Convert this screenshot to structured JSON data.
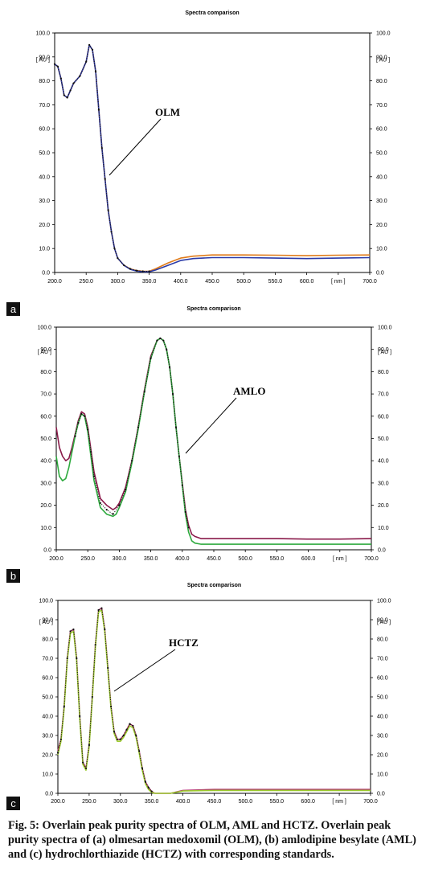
{
  "chart_data": [
    {
      "type": "line",
      "panel_label": "a",
      "title": "Spectra comparison",
      "annotation": "OLM",
      "xlim": [
        200,
        700
      ],
      "ylim": [
        0,
        100
      ],
      "x_ticks": [
        "200.0",
        "250.0",
        "300.0",
        "350.0",
        "400.0",
        "450.0",
        "500.0",
        "550.0",
        "600.0",
        "650.0",
        "700.0"
      ],
      "x_unit": "[ nm ]",
      "y_ticks": [
        "0.0",
        "10.0",
        "20.0",
        "30.0",
        "40.0",
        "50.0",
        "60.0",
        "70.0",
        "80.0",
        "90.0",
        "100.0"
      ],
      "y_unit": "[ AU ]",
      "series": [
        {
          "color": "#e07b1a",
          "x": [
            200,
            205,
            210,
            215,
            220,
            225,
            230,
            240,
            250,
            255,
            260,
            265,
            270,
            275,
            280,
            285,
            290,
            295,
            300,
            310,
            320,
            330,
            340,
            350,
            360,
            380,
            400,
            420,
            450,
            500,
            550,
            600,
            650,
            700
          ],
          "y": [
            87,
            86,
            81,
            74,
            73,
            76,
            79,
            82,
            88,
            95,
            93,
            84,
            68,
            52,
            39,
            26,
            17,
            10,
            6,
            3,
            1.5,
            0.8,
            0.5,
            0.5,
            1.5,
            4,
            6,
            6.8,
            7.3,
            7.3,
            7.2,
            7,
            7.2,
            7.3
          ]
        },
        {
          "color": "#2b3ba8",
          "x": [
            200,
            205,
            210,
            215,
            220,
            225,
            230,
            240,
            250,
            255,
            260,
            265,
            270,
            275,
            280,
            285,
            290,
            295,
            300,
            310,
            320,
            330,
            340,
            350,
            360,
            380,
            400,
            420,
            450,
            500,
            550,
            600,
            650,
            700
          ],
          "y": [
            87,
            86,
            81,
            74,
            73,
            76,
            79,
            82,
            88,
            95,
            93,
            84,
            68,
            52,
            39,
            26,
            17,
            10,
            6,
            3,
            1.3,
            0.6,
            0.3,
            0.3,
            1,
            3,
            5,
            5.8,
            6.2,
            6.2,
            6,
            5.8,
            6,
            6.2
          ]
        },
        {
          "color": "#111111",
          "dots": true,
          "x": [
            200,
            205,
            210,
            215,
            220,
            225,
            230,
            240,
            250,
            255,
            260,
            265,
            270,
            275,
            280,
            285,
            290,
            295,
            300,
            310,
            320,
            330,
            340,
            350
          ],
          "y": [
            87,
            86,
            81,
            74,
            73,
            76,
            79,
            82,
            88,
            95,
            93,
            84,
            68,
            52,
            39,
            26,
            17,
            10,
            6,
            3,
            1.5,
            0.8,
            0.5,
            0.5
          ]
        }
      ]
    },
    {
      "type": "line",
      "panel_label": "b",
      "title": "Spectra comparison",
      "annotation": "AMLO",
      "xlim": [
        200,
        700
      ],
      "ylim": [
        0,
        100
      ],
      "x_ticks": [
        "200.0",
        "250.0",
        "300.0",
        "350.0",
        "400.0",
        "450.0",
        "500.0",
        "550.0",
        "600.0",
        "650.0",
        "700.0"
      ],
      "x_unit": "[ nm ]",
      "y_ticks": [
        "0.0",
        "10.0",
        "20.0",
        "30.0",
        "40.0",
        "50.0",
        "60.0",
        "70.0",
        "80.0",
        "90.0",
        "100.0"
      ],
      "y_unit": "[ AU ]",
      "series": [
        {
          "color": "#8a1a4a",
          "x": [
            200,
            205,
            210,
            215,
            220,
            225,
            230,
            235,
            240,
            245,
            250,
            255,
            260,
            270,
            280,
            290,
            295,
            300,
            310,
            320,
            330,
            340,
            350,
            360,
            365,
            370,
            375,
            380,
            385,
            390,
            395,
            400,
            405,
            410,
            415,
            420,
            430,
            450,
            500,
            550,
            600,
            650,
            700
          ],
          "y": [
            55,
            46,
            42,
            40,
            41,
            46,
            52,
            58,
            62,
            61,
            55,
            45,
            35,
            23,
            20,
            18,
            19,
            21,
            28,
            40,
            55,
            72,
            87,
            94,
            95,
            94,
            90,
            82,
            70,
            55,
            42,
            30,
            18,
            11,
            7,
            6,
            5,
            5,
            5,
            5,
            4.8,
            4.8,
            5
          ]
        },
        {
          "color": "#2eaa3e",
          "x": [
            200,
            205,
            210,
            215,
            220,
            225,
            230,
            235,
            240,
            245,
            250,
            255,
            260,
            270,
            280,
            290,
            295,
            300,
            310,
            320,
            330,
            340,
            350,
            360,
            365,
            370,
            375,
            380,
            385,
            390,
            395,
            400,
            405,
            410,
            415,
            420,
            430,
            450,
            500,
            550,
            600,
            650,
            700
          ],
          "y": [
            42,
            33,
            31,
            32,
            37,
            44,
            51,
            57,
            61,
            60,
            53,
            42,
            31,
            19,
            16,
            15,
            16,
            19,
            26,
            39,
            54,
            71,
            86,
            94,
            95,
            94,
            90,
            82,
            70,
            55,
            42,
            29,
            16,
            8,
            4,
            3,
            2.5,
            2.5,
            2.5,
            2.5,
            2.5,
            2.5,
            2.5
          ]
        },
        {
          "color": "#111111",
          "dots": true,
          "x": [
            230,
            235,
            240,
            245,
            250,
            255,
            260,
            270,
            280,
            290,
            300,
            310,
            320,
            330,
            340,
            350,
            360,
            365,
            370,
            375,
            380,
            385,
            390,
            395,
            400,
            405,
            410
          ],
          "y": [
            51,
            57,
            61,
            60,
            54,
            44,
            33,
            21,
            18,
            16,
            20,
            27,
            40,
            55,
            71,
            86,
            94,
            95,
            94,
            90,
            82,
            70,
            55,
            42,
            29,
            17,
            10
          ]
        }
      ]
    },
    {
      "type": "line",
      "panel_label": "c",
      "title": "Spectra comparison",
      "annotation": "HCTZ",
      "xlim": [
        200,
        700
      ],
      "ylim": [
        0,
        100
      ],
      "x_ticks": [
        "200.0",
        "250.0",
        "300.0",
        "350.0",
        "400.0",
        "450.0",
        "500.0",
        "550.0",
        "600.0",
        "650.0",
        "700.0"
      ],
      "x_unit": "[ nm ]",
      "y_ticks": [
        "0.0",
        "10.0",
        "20.0",
        "30.0",
        "40.0",
        "50.0",
        "60.0",
        "70.0",
        "80.0",
        "90.0",
        "100.0"
      ],
      "y_unit": "[ AU ]",
      "series": [
        {
          "color": "#b0336a",
          "x": [
            200,
            205,
            210,
            215,
            220,
            225,
            230,
            235,
            240,
            245,
            250,
            255,
            260,
            265,
            270,
            275,
            280,
            285,
            290,
            295,
            300,
            305,
            310,
            315,
            320,
            325,
            330,
            335,
            340,
            345,
            350,
            355,
            360,
            370,
            380,
            400,
            450,
            500,
            550,
            600,
            650,
            700
          ],
          "y": [
            22,
            28,
            45,
            70,
            84,
            85,
            70,
            40,
            16,
            13,
            25,
            50,
            77,
            95,
            96,
            85,
            65,
            45,
            32,
            28,
            28,
            30,
            33,
            36,
            35,
            30,
            22,
            13,
            6,
            3,
            1,
            0,
            0,
            0,
            0,
            1.5,
            2,
            2,
            2,
            2,
            2,
            2
          ]
        },
        {
          "color": "#9ccc2e",
          "x": [
            200,
            205,
            210,
            215,
            220,
            225,
            230,
            235,
            240,
            245,
            250,
            255,
            260,
            265,
            270,
            275,
            280,
            285,
            290,
            295,
            300,
            305,
            310,
            315,
            320,
            325,
            330,
            335,
            340,
            345,
            350,
            355,
            360,
            370,
            380,
            400,
            450,
            500,
            550,
            600,
            650,
            700
          ],
          "y": [
            20,
            27,
            44,
            69,
            83,
            84,
            69,
            39,
            15,
            12,
            24,
            49,
            76,
            94,
            95,
            84,
            64,
            44,
            31,
            27,
            27,
            29,
            32,
            35,
            34,
            29,
            21,
            12,
            5,
            2,
            0.5,
            0,
            0,
            0,
            0,
            1.2,
            1.5,
            1.5,
            1.5,
            1.5,
            1.5,
            1.5
          ]
        },
        {
          "color": "#111111",
          "dots": true,
          "x": [
            200,
            205,
            210,
            215,
            220,
            225,
            230,
            235,
            240,
            245,
            250,
            255,
            260,
            265,
            270,
            275,
            280,
            285,
            290,
            295,
            300,
            305,
            310,
            315,
            320,
            325,
            330,
            335,
            340,
            345,
            350
          ],
          "y": [
            21,
            28,
            45,
            70,
            84,
            85,
            70,
            40,
            16,
            13,
            25,
            50,
            77,
            95,
            96,
            85,
            65,
            45,
            32,
            28,
            28,
            30,
            33,
            36,
            35,
            30,
            22,
            13,
            6,
            3,
            1
          ]
        }
      ]
    }
  ],
  "caption": {
    "heading": "Fig. 5: Overlain peak purity spectra of OLM, AML and HCTZ.",
    "body": "Overlain peak purity spectra of (a) olmesartan medoxomil (OLM), (b) amlodipine besylate (AML) and (c) hydrochlorthiazide (HCTZ) with corresponding standards."
  }
}
